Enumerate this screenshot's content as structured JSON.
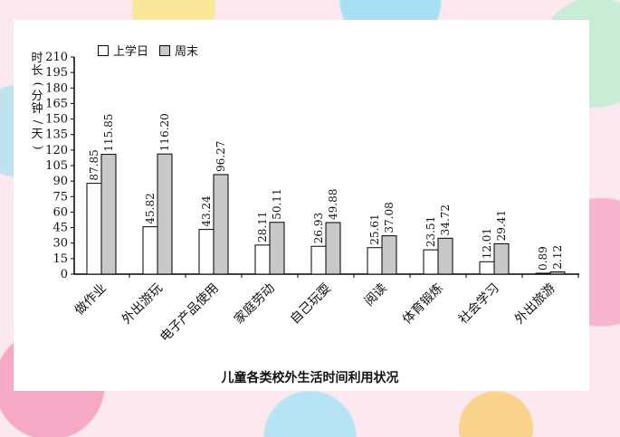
{
  "chart_data": {
    "type": "bar",
    "title": "儿童各类校外生活时间利用状况",
    "ylabel": "时长(分钟/天)",
    "ylim": [
      0,
      210
    ],
    "yticks": [
      0,
      15,
      30,
      45,
      60,
      75,
      90,
      105,
      120,
      135,
      150,
      165,
      180,
      195,
      210
    ],
    "categories": [
      "做作业",
      "外出游玩",
      "电子产品使用",
      "家庭劳动",
      "自己玩耍",
      "阅读",
      "体育锻炼",
      "社会学习",
      "外出旅游"
    ],
    "series": [
      {
        "name": "上学日",
        "color": "#ffffff",
        "values": [
          87.85,
          45.82,
          43.24,
          28.11,
          26.93,
          25.61,
          23.51,
          12.01,
          0.89
        ]
      },
      {
        "name": "周末",
        "color": "#c8c8c8",
        "values": [
          115.85,
          116.2,
          96.27,
          50.11,
          49.88,
          37.08,
          34.72,
          29.41,
          2.12
        ]
      }
    ],
    "value_labels": [
      [
        "87.85",
        "45.82",
        "43.24",
        "28.11",
        "26.93",
        "25.61",
        "23.51",
        "12.01",
        "0.89"
      ],
      [
        "115.85",
        "116.20",
        "96.27",
        "50.11",
        "49.88",
        "37.08",
        "34.72",
        "29.41",
        "2.12"
      ]
    ],
    "legend": "top-left",
    "grid": false
  }
}
